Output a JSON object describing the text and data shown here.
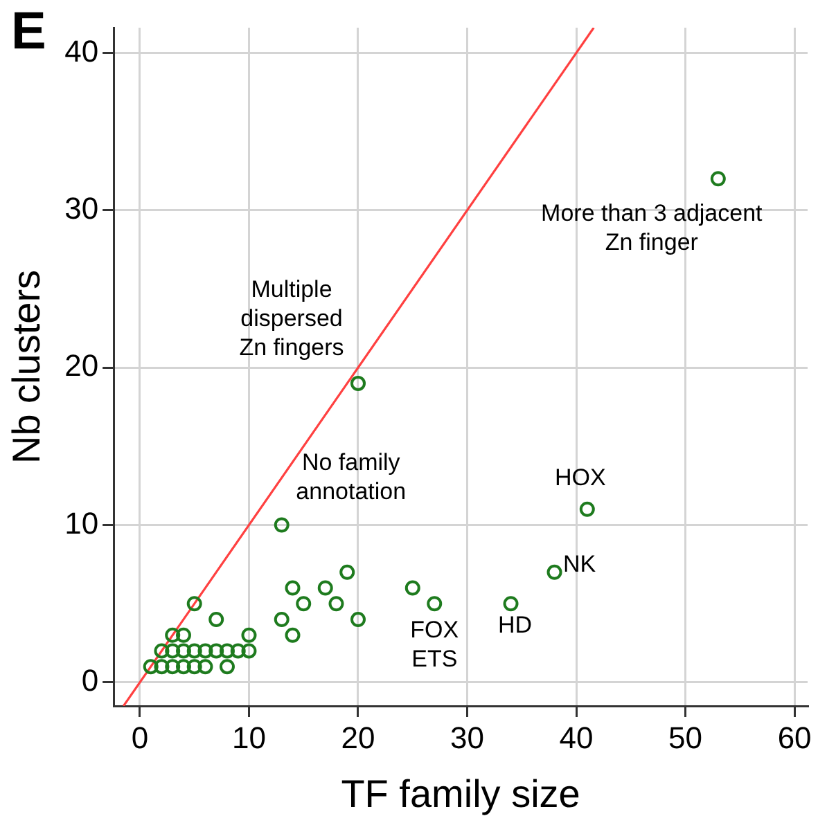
{
  "chart_data": {
    "type": "scatter",
    "xlabel": "TF family size",
    "ylabel": "Nb clusters",
    "xlim": [
      -2.4,
      61.2
    ],
    "ylim": [
      -1.5,
      41.6
    ],
    "xticks": [
      0,
      10,
      20,
      30,
      40,
      50,
      60
    ],
    "yticks": [
      0,
      10,
      20,
      30,
      40
    ],
    "grid": true,
    "legend": false,
    "series": [
      {
        "marker": "circle",
        "color": "#1e7b1e",
        "x": [
          1,
          2,
          3,
          4,
          5,
          6,
          8,
          2,
          3,
          4,
          5,
          6,
          7,
          8,
          9,
          10,
          3,
          4,
          10,
          7,
          5,
          13,
          13,
          14,
          14,
          15,
          17,
          18,
          19,
          20,
          20,
          25,
          27,
          34,
          38,
          41,
          53
        ],
        "values": [
          1,
          1,
          1,
          1,
          1,
          1,
          1,
          2,
          2,
          2,
          2,
          2,
          2,
          2,
          2,
          2,
          3,
          3,
          3,
          4,
          5,
          10,
          4,
          3,
          6,
          5,
          6,
          5,
          7,
          4,
          19,
          6,
          5,
          5,
          7,
          11,
          32
        ]
      },
      {
        "type": "line",
        "marker": "none",
        "color": "#ff4040",
        "line_style": "solid",
        "x": [
          -1.5,
          41.6
        ],
        "values": [
          -1.5,
          41.6
        ]
      }
    ],
    "annotations": [
      "E",
      {
        "text": "More than 3 adjacent\nZn finger",
        "x": 53,
        "y": 32
      },
      {
        "text": "Multiple\ndispersed\nZn fingers",
        "x": 20,
        "y": 19
      },
      {
        "text": "No family\nannotation",
        "x": 13,
        "y": 10
      },
      {
        "text": "HOX",
        "x": 41,
        "y": 11
      },
      {
        "text": "NK",
        "x": 38,
        "y": 7
      },
      {
        "text": "FOX\nETS",
        "x": 27,
        "y": 5
      },
      {
        "text": "HD",
        "x": 34,
        "y": 5
      }
    ]
  }
}
